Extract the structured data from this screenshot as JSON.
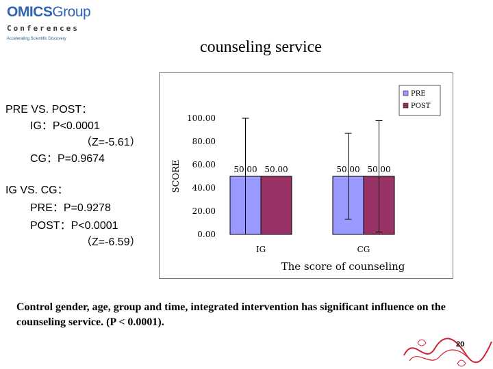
{
  "logo": {
    "brand": "OMICS",
    "brand2": "Group",
    "sub": "Conferences",
    "tagline": "Accelerating Scientific Discovery"
  },
  "slide": {
    "title": "counseling service",
    "page": "20"
  },
  "stats": {
    "lines": [
      "PRE VS. POST：",
      "IG：P<0.0001",
      "（Z=-5.61）",
      "CG：P=0.9674",
      "IG VS. CG：",
      "PRE：P=0.9278",
      "POST：P<0.0001",
      "（Z=-6.59）"
    ]
  },
  "caption": "Control gender, age, group and time, integrated intervention has significant influence on the counseling service. (P < 0.0001).",
  "chart_data": {
    "type": "bar",
    "title": "The score of counseling",
    "categories": [
      "IG",
      "CG"
    ],
    "series": [
      {
        "name": "PRE",
        "values": [
          50,
          50
        ],
        "color": "#9999ff"
      },
      {
        "name": "POST",
        "values": [
          50,
          50
        ],
        "color": "#993366"
      }
    ],
    "data_labels": [
      [
        "50.00",
        "50.00"
      ],
      [
        "50.00",
        "50.00"
      ]
    ],
    "error_bars": [
      {
        "series": "PRE",
        "category": "IG",
        "low": 0,
        "high": 100
      },
      {
        "series": "POST",
        "category": "IG",
        "low": 50,
        "high": 50
      },
      {
        "series": "PRE",
        "category": "CG",
        "low": 13,
        "high": 87
      },
      {
        "series": "POST",
        "category": "CG",
        "low": 2,
        "high": 98
      }
    ],
    "ylabel": "SCORE",
    "xlabel": "The score of counseling",
    "ylim": [
      0,
      100
    ],
    "yticks": [
      "0.00",
      "20.00",
      "40.00",
      "60.00",
      "80.00",
      "100.00"
    ],
    "legend_position": "top-right",
    "grid": false
  },
  "colors": {
    "logo_blue": "#2f63b5",
    "pre": "#9999ff",
    "post": "#993366",
    "ribbon": "#cc2233"
  }
}
